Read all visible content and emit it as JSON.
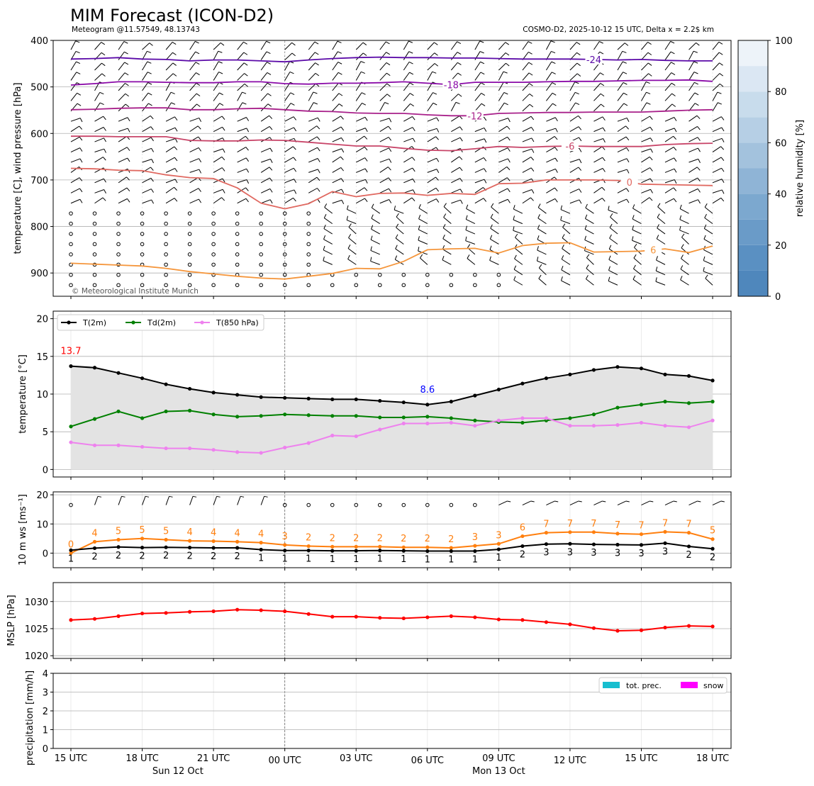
{
  "header": {
    "title": "MIM Forecast (ICON-D2)",
    "subtitle_left": "Meteogram @11.57549, 48.13743",
    "subtitle_right": "COSMO-D2, 2025-10-12 15 UTC, Delta x = 2.2$ km",
    "copyright": "© Meteorological Institute Munich"
  },
  "time_axis": {
    "hours": [
      "15 UTC",
      "18 UTC",
      "21 UTC",
      "00 UTC",
      "03 UTC",
      "06 UTC",
      "09 UTC",
      "12 UTC",
      "15 UTC",
      "18 UTC"
    ],
    "dates": [
      {
        "label": "Sun 12 Oct",
        "at_step": 4.5
      },
      {
        "label": "Mon 13 Oct",
        "at_step": 18
      }
    ]
  },
  "colors": {
    "t2m": "#000000",
    "td2m": "#008000",
    "t850": "#ee82ee",
    "gust": "#ff7f0e",
    "mslp": "#ff0000",
    "precip": "#17becf",
    "snow": "#ff00ff",
    "fill": "#e3e3e3",
    "tmax": "#ff0000",
    "tmin": "#0000ff"
  },
  "chart_data": [
    {
      "type": "contour",
      "name": "upper-air",
      "ylabel": "temperature [C], wind pressure [hPa]",
      "ylim": [
        950,
        400
      ],
      "yticks": [
        400,
        500,
        600,
        700,
        800,
        900
      ],
      "colorbar": {
        "label": "relative humidity [%]",
        "ticks": [
          0,
          20,
          40,
          60,
          80,
          100
        ],
        "levels": 10
      },
      "isotherms": [
        {
          "label": "-24",
          "color": "#5b0aa8",
          "label_step": 22,
          "values": [
            440,
            439,
            437,
            440,
            441,
            444,
            442,
            442,
            444,
            446,
            442,
            439,
            437,
            436,
            437,
            437,
            438,
            438,
            439,
            440,
            440,
            440,
            441,
            442,
            441,
            443,
            444,
            444
          ]
        },
        {
          "label": "-18",
          "color": "#8a0aa8",
          "label_step": 16,
          "values": [
            496,
            493,
            489,
            489,
            490,
            491,
            491,
            489,
            489,
            493,
            494,
            492,
            492,
            491,
            489,
            492,
            495,
            490,
            490,
            490,
            489,
            488,
            488,
            487,
            486,
            486,
            485,
            488
          ]
        },
        {
          "label": "-12",
          "color": "#a8208a",
          "label_step": 17,
          "values": [
            549,
            548,
            546,
            545,
            545,
            549,
            549,
            547,
            546,
            549,
            552,
            553,
            556,
            557,
            557,
            560,
            562,
            562,
            557,
            556,
            555,
            555,
            554,
            554,
            554,
            552,
            550,
            549
          ]
        },
        {
          "label": "-6",
          "color": "#c84468",
          "label_step": 21,
          "values": [
            606,
            606,
            607,
            607,
            607,
            615,
            616,
            616,
            614,
            615,
            619,
            623,
            627,
            627,
            632,
            636,
            637,
            633,
            628,
            630,
            628,
            627,
            628,
            628,
            628,
            624,
            622,
            621
          ]
        },
        {
          "label": "0",
          "color": "#e06860",
          "label_step": 23.5,
          "values": [
            675,
            676,
            679,
            680,
            689,
            695,
            697,
            717,
            750,
            762,
            751,
            725,
            736,
            729,
            728,
            733,
            729,
            731,
            708,
            707,
            700,
            700,
            700,
            701,
            709,
            710,
            711,
            712
          ]
        },
        {
          "label": "6",
          "color": "#f5963c",
          "label_step": 24.5,
          "values": [
            879,
            881,
            883,
            885,
            890,
            897,
            902,
            907,
            911,
            913,
            907,
            901,
            890,
            891,
            875,
            850,
            848,
            847,
            857,
            841,
            836,
            835,
            855,
            854,
            853,
            848,
            856,
            842
          ]
        }
      ],
      "calm_pressures": [
        770,
        785,
        800,
        815,
        830,
        850,
        875,
        900,
        925
      ]
    },
    {
      "type": "line",
      "name": "temperature",
      "ylabel": "temperature [$^\\circ$C]",
      "ylim": [
        -1,
        21
      ],
      "yticks": [
        0,
        5,
        10,
        15,
        20
      ],
      "legend": [
        "T(2m)",
        "Td(2m)",
        "T(850 hPa)"
      ],
      "max_label": "13.7",
      "min_label": "8.6",
      "series": [
        {
          "name": "T(2m)",
          "values": [
            13.7,
            13.5,
            12.8,
            12.1,
            11.3,
            10.7,
            10.2,
            9.9,
            9.6,
            9.5,
            9.4,
            9.3,
            9.3,
            9.1,
            8.9,
            8.6,
            9.0,
            9.8,
            10.6,
            11.4,
            12.1,
            12.6,
            13.2,
            13.6,
            13.4,
            12.6,
            12.4,
            11.8
          ]
        },
        {
          "name": "Td(2m)",
          "values": [
            5.7,
            6.7,
            7.7,
            6.8,
            7.7,
            7.8,
            7.3,
            7.0,
            7.1,
            7.3,
            7.2,
            7.1,
            7.1,
            6.9,
            6.9,
            7.0,
            6.8,
            6.5,
            6.3,
            6.2,
            6.5,
            6.8,
            7.3,
            8.2,
            8.6,
            9.0,
            8.8,
            9.0
          ]
        },
        {
          "name": "T(850 hPa)",
          "values": [
            3.6,
            3.2,
            3.2,
            3.0,
            2.8,
            2.8,
            2.6,
            2.3,
            2.2,
            2.9,
            3.5,
            4.5,
            4.4,
            5.3,
            6.1,
            6.1,
            6.2,
            5.8,
            6.5,
            6.8,
            6.8,
            5.8,
            5.8,
            5.9,
            6.2,
            5.8,
            5.6,
            6.5
          ]
        }
      ]
    },
    {
      "type": "line",
      "name": "wind",
      "ylabel": "10 m ws [ms$^{-1}$]",
      "ylim": [
        -5,
        21
      ],
      "yticks": [
        0,
        10,
        20
      ],
      "series": [
        {
          "name": "wind speed",
          "values": [
            1,
            1.7,
            2.1,
            1.9,
            2.0,
            1.9,
            1.8,
            1.8,
            1.2,
            0.9,
            0.9,
            0.8,
            0.8,
            0.9,
            0.8,
            0.7,
            0.7,
            0.7,
            1.3,
            2.4,
            3.1,
            3.2,
            3.0,
            2.9,
            2.8,
            3.4,
            2.3,
            1.5
          ],
          "labels": [
            "1",
            "2",
            "2",
            "2",
            "2",
            "2",
            "2",
            "2",
            "1",
            "1",
            "1",
            "1",
            "1",
            "1",
            "1",
            "1",
            "1",
            "1",
            "1",
            "2",
            "3",
            "3",
            "3",
            "3",
            "3",
            "3",
            "2",
            "2"
          ]
        },
        {
          "name": "gust",
          "values": [
            0,
            3.9,
            4.6,
            5.0,
            4.6,
            4.2,
            4.1,
            3.9,
            3.6,
            2.8,
            2.4,
            2.2,
            2.2,
            2.2,
            2.0,
            2.0,
            1.8,
            2.5,
            3.2,
            5.8,
            7.0,
            7.2,
            7.2,
            6.7,
            6.5,
            7.3,
            7.0,
            4.8
          ],
          "labels": [
            "0",
            "4",
            "5",
            "5",
            "5",
            "4",
            "4",
            "4",
            "4",
            "3",
            "2",
            "2",
            "2",
            "2",
            "2",
            "2",
            "2",
            "3",
            "3",
            "6",
            "7",
            "7",
            "7",
            "7",
            "7",
            "7",
            "7",
            "5"
          ]
        }
      ]
    },
    {
      "type": "line",
      "name": "pressure",
      "ylabel": "MSLP [hPa]",
      "ylim": [
        1019.5,
        1033.5
      ],
      "yticks": [
        1020,
        1025,
        1030
      ],
      "series": [
        {
          "name": "MSLP",
          "values": [
            1026.6,
            1026.8,
            1027.3,
            1027.8,
            1027.9,
            1028.1,
            1028.2,
            1028.5,
            1028.4,
            1028.2,
            1027.7,
            1027.2,
            1027.2,
            1027.0,
            1026.9,
            1027.1,
            1027.3,
            1027.1,
            1026.7,
            1026.6,
            1026.2,
            1025.8,
            1025.1,
            1024.6,
            1024.7,
            1025.2,
            1025.5,
            1025.4
          ]
        }
      ]
    },
    {
      "type": "bar",
      "name": "precipitation",
      "ylabel": "precipitation [mm/h]",
      "ylim": [
        0,
        4
      ],
      "yticks": [
        0,
        1,
        2,
        3,
        4
      ],
      "legend": [
        "tot. prec.",
        "snow"
      ],
      "series": [
        {
          "name": "tot. prec.",
          "values": [
            0,
            0,
            0,
            0,
            0,
            0,
            0,
            0,
            0,
            0,
            0,
            0,
            0,
            0,
            0,
            0,
            0,
            0,
            0,
            0,
            0,
            0,
            0,
            0,
            0,
            0,
            0,
            0
          ]
        },
        {
          "name": "snow",
          "values": [
            0,
            0,
            0,
            0,
            0,
            0,
            0,
            0,
            0,
            0,
            0,
            0,
            0,
            0,
            0,
            0,
            0,
            0,
            0,
            0,
            0,
            0,
            0,
            0,
            0,
            0,
            0,
            0
          ]
        }
      ]
    }
  ]
}
